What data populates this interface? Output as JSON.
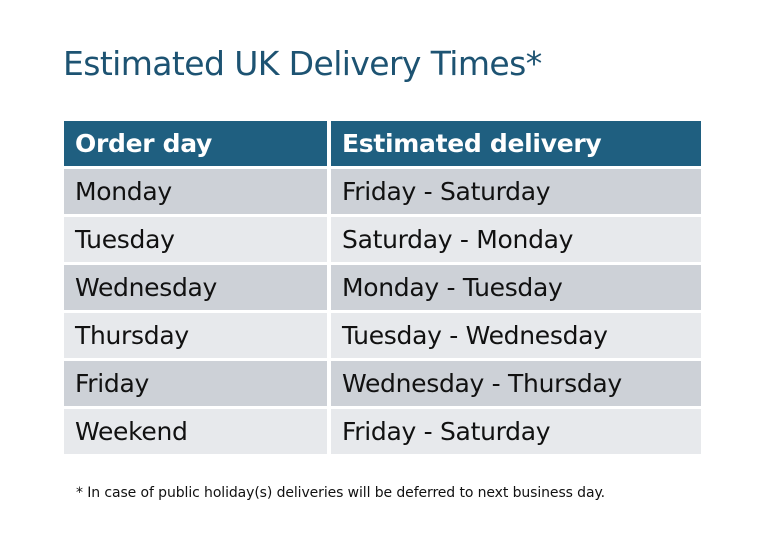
{
  "title": "Estimated UK Delivery Times*",
  "table": {
    "headers": [
      "Order day",
      "Estimated delivery"
    ],
    "rows": [
      [
        "Monday",
        "Friday - Saturday"
      ],
      [
        "Tuesday",
        "Saturday - Monday"
      ],
      [
        "Wednesday",
        "Monday - Tuesday"
      ],
      [
        "Thursday",
        "Tuesday - Wednesday"
      ],
      [
        "Friday",
        "Wednesday - Thursday"
      ],
      [
        "Weekend",
        "Friday - Saturday"
      ]
    ]
  },
  "footnote": "* In case of public holiday(s) deliveries will be deferred to next business day.",
  "colors": {
    "header": "#1f5f80",
    "row_dark": "#cdd1d7",
    "row_light": "#e7e9ec",
    "title": "#1d5372"
  }
}
